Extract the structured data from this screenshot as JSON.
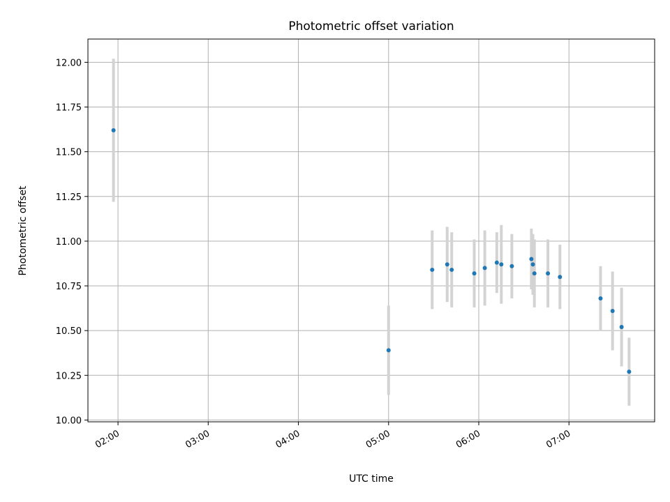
{
  "chart_data": {
    "type": "scatter",
    "title": "Photometric offset variation",
    "xlabel": "UTC time",
    "ylabel": "Photometric offset",
    "x_axis": {
      "kind": "time",
      "range": [
        "01:40",
        "07:57"
      ],
      "ticks": [
        "02:00",
        "03:00",
        "04:00",
        "05:00",
        "06:00",
        "07:00"
      ]
    },
    "y_axis": {
      "range": [
        9.99,
        12.13
      ],
      "ticks": [
        "10.00",
        "10.25",
        "10.50",
        "10.75",
        "11.00",
        "11.25",
        "11.50",
        "11.75",
        "12.00"
      ]
    },
    "grid": true,
    "colors": {
      "marker": "#1f77b4",
      "errorbar": "#d3d3d3"
    },
    "series": [
      {
        "points": [
          {
            "x": "01:57",
            "y": 11.62,
            "err": 0.4
          },
          {
            "x": "05:00",
            "y": 10.39,
            "err": 0.25
          },
          {
            "x": "05:29",
            "y": 10.84,
            "err": 0.22
          },
          {
            "x": "05:39",
            "y": 10.87,
            "err": 0.21
          },
          {
            "x": "05:42",
            "y": 10.84,
            "err": 0.21
          },
          {
            "x": "05:57",
            "y": 10.82,
            "err": 0.19
          },
          {
            "x": "06:04",
            "y": 10.85,
            "err": 0.21
          },
          {
            "x": "06:12",
            "y": 10.88,
            "err": 0.17
          },
          {
            "x": "06:15",
            "y": 10.87,
            "err": 0.22
          },
          {
            "x": "06:22",
            "y": 10.86,
            "err": 0.18
          },
          {
            "x": "06:35",
            "y": 10.9,
            "err": 0.17
          },
          {
            "x": "06:36",
            "y": 10.87,
            "err": 0.17
          },
          {
            "x": "06:37",
            "y": 10.82,
            "err": 0.19
          },
          {
            "x": "06:46",
            "y": 10.82,
            "err": 0.19
          },
          {
            "x": "06:54",
            "y": 10.8,
            "err": 0.18
          },
          {
            "x": "07:21",
            "y": 10.68,
            "err": 0.18
          },
          {
            "x": "07:29",
            "y": 10.61,
            "err": 0.22
          },
          {
            "x": "07:35",
            "y": 10.52,
            "err": 0.22
          },
          {
            "x": "07:40",
            "y": 10.27,
            "err": 0.19
          }
        ]
      }
    ]
  }
}
